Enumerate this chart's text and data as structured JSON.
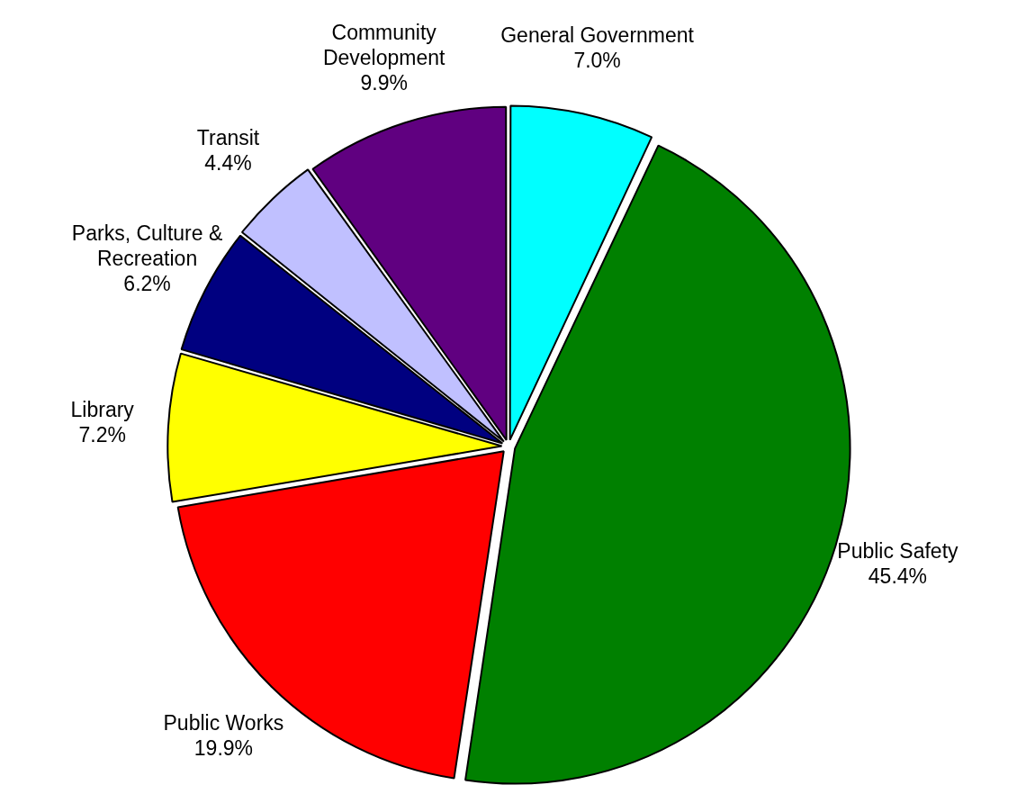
{
  "chart_data": {
    "type": "pie",
    "categories": [
      "General Government",
      "Public Safety",
      "Public Works",
      "Library",
      "Parks, Culture & Recreation",
      "Transit",
      "Community Development"
    ],
    "values": [
      7.0,
      45.4,
      19.9,
      7.2,
      6.2,
      4.4,
      9.9
    ],
    "colors": [
      "#00ffff",
      "#008000",
      "#ff0000",
      "#ffff00",
      "#000080",
      "#c0c0ff",
      "#600080"
    ],
    "value_labels": [
      "7.0%",
      "45.4%",
      "19.9%",
      "7.2%",
      "6.2%",
      "4.4%",
      "9.9%"
    ],
    "legend": false
  }
}
